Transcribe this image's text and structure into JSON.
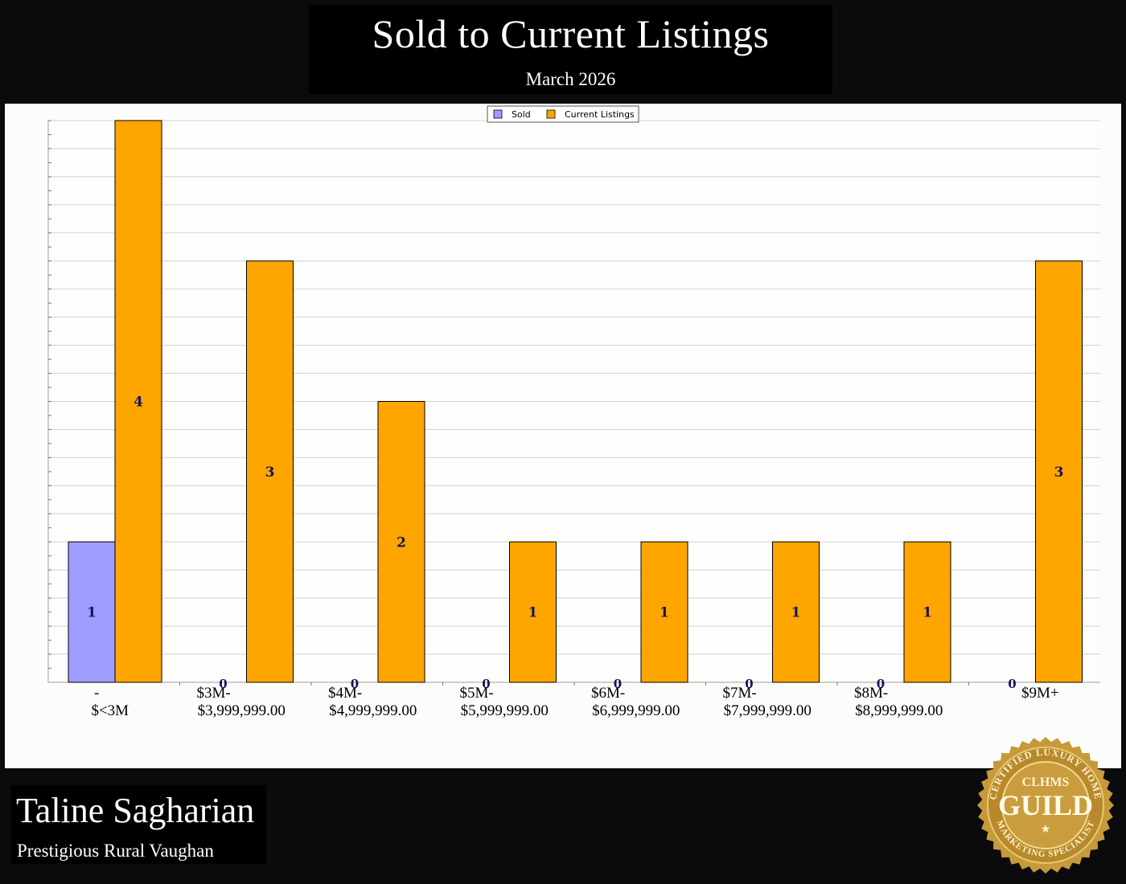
{
  "header": {
    "title": "Sold to Current Listings",
    "subtitle": "March 2026"
  },
  "agent": {
    "name": "Taline Sagharian",
    "area": "Prestigious Rural Vaughan"
  },
  "badge": {
    "top_text": "CERTIFIED LUXURY HOME",
    "bottom_text": "MARKETING SPECIALIST",
    "abbr": "CLHMS",
    "word": "GUILD"
  },
  "chart_data": {
    "type": "bar",
    "categories": [
      [
        "-",
        "$<3M"
      ],
      [
        "$3M-",
        "$3,999,999.00"
      ],
      [
        "$4M-",
        "$4,999,999.00"
      ],
      [
        "$5M-",
        "$5,999,999.00"
      ],
      [
        "$6M-",
        "$6,999,999.00"
      ],
      [
        "$7M-",
        "$7,999,999.00"
      ],
      [
        "$8M-",
        "$8,999,999.00"
      ],
      [
        "$9M+"
      ]
    ],
    "series": [
      {
        "name": "Sold",
        "color": "#a09cff",
        "values": [
          1,
          0,
          0,
          0,
          0,
          0,
          0,
          0
        ]
      },
      {
        "name": "Current Listings",
        "color": "#ffa500",
        "values": [
          4,
          3,
          2,
          1,
          1,
          1,
          1,
          3
        ]
      }
    ],
    "ylim": [
      0,
      4
    ],
    "legend": "top-center",
    "grid": true,
    "data_labels": true
  }
}
